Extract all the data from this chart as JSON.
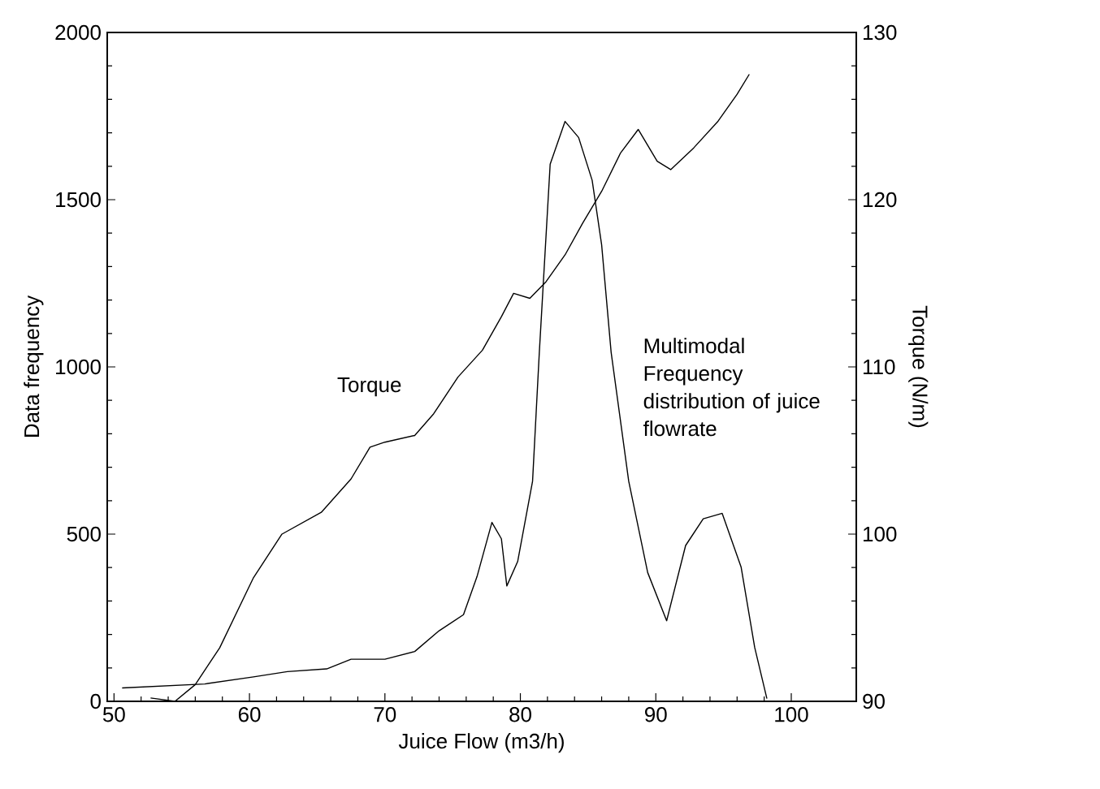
{
  "chart_data": {
    "type": "line",
    "xlabel": "Juice Flow (m3/h)",
    "ylabel": "Data frequency",
    "y2label": "Torque (N/m)",
    "xlim": [
      49.5,
      104.8
    ],
    "xticks": [
      50,
      60,
      70,
      80,
      90,
      100
    ],
    "ylim": [
      0,
      2000
    ],
    "yticks": [
      0,
      500,
      1000,
      1500,
      2000
    ],
    "y2lim": [
      90,
      130
    ],
    "y2ticks": [
      90,
      100,
      110,
      120,
      130
    ],
    "marker": "none",
    "line_style": "solid",
    "grid": false,
    "annotations": [
      "Torque",
      "Multimodal Frequency distribution of juice flowrate"
    ],
    "series": [
      {
        "color": "#000000",
        "x": [
          50.6,
          56.7,
          60.3,
          62.8,
          65.7,
          67.5,
          70,
          72.2,
          74,
          75.8,
          76.8,
          77.9,
          78.6,
          79,
          79.8,
          80.9,
          81.4,
          82.2,
          83.3,
          84.3,
          85.3,
          86,
          86.7,
          88,
          89.4,
          90.8,
          92.2,
          93.5,
          94.9,
          96.3,
          97.3,
          98.2
        ],
        "values": [
          40,
          52,
          73,
          89,
          97,
          126,
          126,
          149,
          211,
          259,
          373,
          535,
          486,
          345,
          418,
          658,
          1044,
          1606,
          1734,
          1686,
          1558,
          1365,
          1044,
          658,
          385,
          241,
          466,
          546,
          562,
          401,
          161,
          8
        ]
      },
      {
        "color": "#000000",
        "axis": "y2",
        "x": [
          52.7,
          54.5,
          56,
          57.8,
          60.3,
          62.4,
          65.3,
          67.5,
          68.9,
          70,
          72.2,
          73.6,
          75.4,
          77.2,
          78.6,
          79.5,
          80.7,
          81.9,
          83.3,
          84.6,
          86,
          87.4,
          88.7,
          90.1,
          91.1,
          92.8,
          94.6,
          96,
          96.9
        ],
        "values": [
          90.2,
          90,
          91,
          93.2,
          97.4,
          100,
          101.3,
          103.3,
          105.2,
          105.5,
          105.9,
          107.2,
          109.4,
          111,
          113,
          114.4,
          114.1,
          115.1,
          116.7,
          118.6,
          120.5,
          122.8,
          124.2,
          122.3,
          121.8,
          123.1,
          124.7,
          126.3,
          127.5
        ]
      }
    ]
  }
}
